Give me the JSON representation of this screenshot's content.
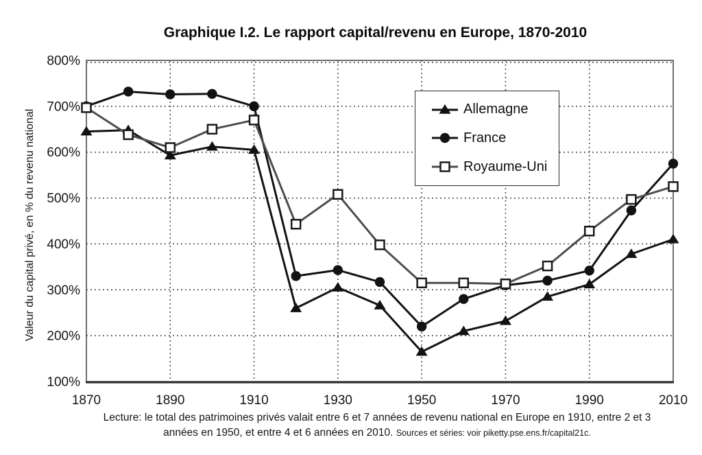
{
  "title": "Graphique I.2. Le rapport capital/revenu en Europe, 1870-2010",
  "chart_data": {
    "type": "line",
    "title": "Graphique I.2. Le rapport capital/revenu en Europe, 1870-2010",
    "xlabel": "",
    "ylabel": "Valeur du capital privé, en % du revenu national",
    "x": [
      1870,
      1880,
      1890,
      1900,
      1910,
      1920,
      1930,
      1940,
      1950,
      1960,
      1970,
      1980,
      1990,
      2000,
      2010
    ],
    "xlim": [
      1870,
      2010
    ],
    "ylim": [
      100,
      800
    ],
    "y_ticks": [
      100,
      200,
      300,
      400,
      500,
      600,
      700,
      800
    ],
    "y_tick_suffix": "%",
    "x_ticks": [
      1870,
      1890,
      1910,
      1930,
      1950,
      1970,
      1990,
      2010
    ],
    "x_gridlines": [
      1890,
      1910,
      1930,
      1950,
      1970,
      1990
    ],
    "grid": true,
    "legend_position": "inside-upper-right",
    "series": [
      {
        "name": "Allemagne",
        "marker": "triangle-filled",
        "color": "#121212",
        "values": [
          645,
          648,
          593,
          612,
          605,
          260,
          305,
          266,
          165,
          210,
          232,
          285,
          312,
          378,
          410
        ]
      },
      {
        "name": "France",
        "marker": "circle-filled",
        "color": "#121212",
        "values": [
          700,
          732,
          726,
          727,
          700,
          330,
          343,
          317,
          220,
          280,
          310,
          320,
          342,
          473,
          575
        ]
      },
      {
        "name": "Royaume-Uni",
        "marker": "square-open",
        "color": "#4d4d4d",
        "values": [
          697,
          638,
          610,
          650,
          670,
          443,
          508,
          398,
          315,
          315,
          313,
          352,
          428,
          497,
          525
        ]
      }
    ]
  },
  "footnote": {
    "line1": "Lecture: le total des patrimoines privés valait entre 6 et 7 années de revenu national en Europe en 1910, entre 2 et 3",
    "line2_main": "années en 1950, et entre 4 et 6 années en 2010.",
    "line2_sources": "Sources et séries: voir piketty.pse.ens.fr/capital21c."
  }
}
